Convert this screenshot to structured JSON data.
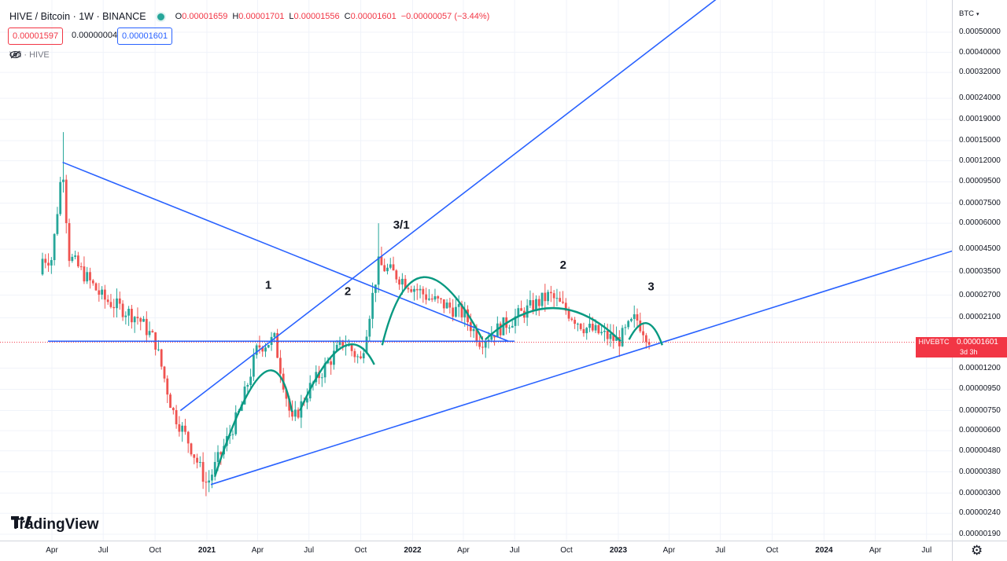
{
  "legend": {
    "symbol": "HIVE / Bitcoin · 1W · BINANCE",
    "open_label": "O",
    "open": "0.00001659",
    "high_label": "H",
    "high": "0.00001701",
    "low_label": "L",
    "low": "0.00001556",
    "close_label": "C",
    "close": "0.00001601",
    "change": "−0.00000057 (−3.44%)",
    "bid": "0.00001597",
    "spread": "0.00000004",
    "ask": "0.00001601",
    "volume_label": "Vol · HIVE"
  },
  "price_scale": {
    "unit": "BTC",
    "ticks": [
      "0.00050000",
      "0.00040000",
      "0.00032000",
      "0.00024000",
      "0.00019000",
      "0.00015000",
      "0.00012000",
      "0.00009500",
      "0.00007500",
      "0.00006000",
      "0.00004500",
      "0.00003500",
      "0.00002700",
      "0.00002100",
      "0.00001200",
      "0.00000950",
      "0.00000750",
      "0.00000600",
      "0.00000480",
      "0.00000380",
      "0.00000300",
      "0.00000240",
      "0.00000190"
    ]
  },
  "last_price_tag": {
    "name": "HIVEBTC",
    "value": "0.00001601",
    "countdown": "3d 3h"
  },
  "time_scale": {
    "ticks": [
      "Apr",
      "Jul",
      "Oct",
      "2021",
      "Apr",
      "Jul",
      "Oct",
      "2022",
      "Apr",
      "Jul",
      "Oct",
      "2023",
      "Apr",
      "Jul",
      "Oct",
      "2024",
      "Apr",
      "Jul"
    ]
  },
  "brand": "TradingView",
  "colors": {
    "up": "#26a69a",
    "down": "#ef5350",
    "trendline": "#2962ff",
    "arc": "#089981",
    "last_price": "#f23645"
  },
  "chart_data": {
    "type": "candlestick",
    "title": "HIVE / Bitcoin · 1W · BINANCE",
    "y_scale": "log",
    "y_unit": "BTC",
    "ylim": [
      1.9e-06,
      0.0005
    ],
    "x_range": [
      "2020-03",
      "2024-08"
    ],
    "last_close": 1.601e-05,
    "series": [
      {
        "name": "HIVEBTC",
        "approx_path": [
          {
            "date": "2020-04",
            "close": 4.05e-05
          },
          {
            "date": "2020-04-20",
            "high": 0.000165,
            "close": 0.000118
          },
          {
            "date": "2020-05",
            "close": 4.2e-05
          },
          {
            "date": "2020-07",
            "close": 2.6e-05
          },
          {
            "date": "2020-09",
            "close": 2.1e-05
          },
          {
            "date": "2020-10",
            "close": 1.62e-05
          },
          {
            "date": "2020-11",
            "close": 7.5e-06
          },
          {
            "date": "2020-12",
            "close": 5.2e-06
          },
          {
            "date": "2021-01",
            "low": 2.9e-06,
            "close": 3.3e-06
          },
          {
            "date": "2021-03",
            "close": 7.5e-06
          },
          {
            "date": "2021-04",
            "close": 1.52e-05
          },
          {
            "date": "2021-05",
            "close": 1.65e-05
          },
          {
            "date": "2021-06",
            "close": 6.5e-06
          },
          {
            "date": "2021-07",
            "close": 9.5e-06
          },
          {
            "date": "2021-09",
            "close": 1.62e-05
          },
          {
            "date": "2021-10",
            "close": 1.3e-05
          },
          {
            "date": "2021-11",
            "high": 6e-05,
            "close": 3.8e-05
          },
          {
            "date": "2021-12",
            "close": 3.4e-05
          },
          {
            "date": "2022-02",
            "close": 2.6e-05
          },
          {
            "date": "2022-04",
            "close": 2.2e-05
          },
          {
            "date": "2022-05",
            "close": 1.62e-05
          },
          {
            "date": "2022-07",
            "close": 2.1e-05
          },
          {
            "date": "2022-09",
            "close": 2.7e-05
          },
          {
            "date": "2022-11",
            "close": 1.9e-05
          },
          {
            "date": "2023-01",
            "close": 1.62e-05
          },
          {
            "date": "2023-02",
            "close": 2.1e-05
          },
          {
            "date": "2023-03",
            "close": 1.601e-05
          }
        ]
      }
    ],
    "annotations": [
      "1",
      "2",
      "3/1",
      "2",
      "3"
    ]
  }
}
